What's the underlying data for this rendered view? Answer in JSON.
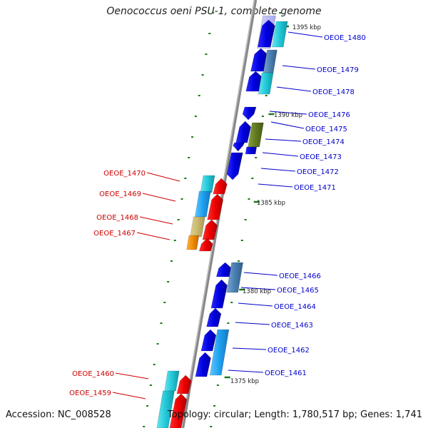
{
  "title": "Oenococcus oeni PSU-1, complete genome",
  "footer": {
    "accession": "Accession: NC_008528",
    "summary": "Topology: circular; Length: 1,780,517 bp; Genes: 1,741"
  },
  "scale_labels": [
    "1395 kbp",
    "1390 kbp",
    "1385 kbp",
    "1380 kbp",
    "1375 kbp"
  ],
  "right_labels": [
    "OEOE_1480",
    "OEOE_1479",
    "OEOE_1478",
    "OEOE_1476",
    "OEOE_1475",
    "OEOE_1474",
    "OEOE_1473",
    "OEOE_1472",
    "OEOE_1471",
    "OEOE_1466",
    "OEOE_1465",
    "OEOE_1464",
    "OEOE_1463",
    "OEOE_1462",
    "OEOE_1461"
  ],
  "left_labels": [
    "OEOE_1470",
    "OEOE_1469",
    "OEOE_1468",
    "OEOE_1467",
    "OEOE_1460",
    "OEOE_1459"
  ],
  "colors": {
    "forward_label": "#0000cc",
    "reverse_label": "#cc0000",
    "backbone": "#888888",
    "tick": "#1a7a1a"
  }
}
